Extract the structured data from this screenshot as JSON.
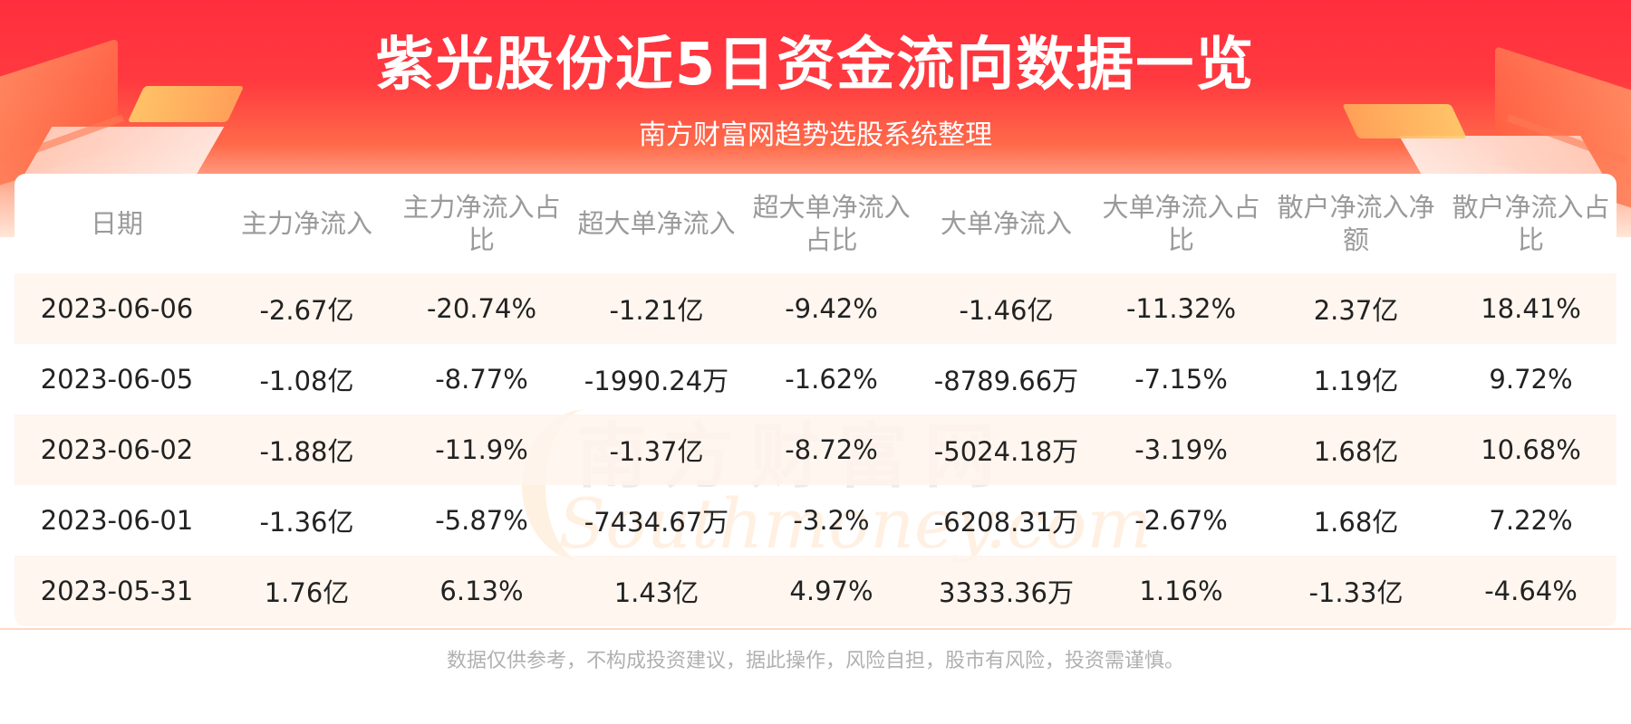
{
  "header": {
    "title": "紫光股份近5日资金流向数据一览",
    "subtitle": "南方财富网趋势选股系统整理"
  },
  "watermark": {
    "cn": "南方财富网",
    "en": "Southmoney.com"
  },
  "table": {
    "columns": [
      "日期",
      "主力净流入",
      "主力净流入占比",
      "超大单净流入",
      "超大单净流入占比",
      "大单净流入",
      "大单净流入占比",
      "散户净流入净额",
      "散户净流入占比"
    ],
    "rows": [
      [
        "2023-06-06",
        "-2.67亿",
        "-20.74%",
        "-1.21亿",
        "-9.42%",
        "-1.46亿",
        "-11.32%",
        "2.37亿",
        "18.41%"
      ],
      [
        "2023-06-05",
        "-1.08亿",
        "-8.77%",
        "-1990.24万",
        "-1.62%",
        "-8789.66万",
        "-7.15%",
        "1.19亿",
        "9.72%"
      ],
      [
        "2023-06-02",
        "-1.88亿",
        "-11.9%",
        "-1.37亿",
        "-8.72%",
        "-5024.18万",
        "-3.19%",
        "1.68亿",
        "10.68%"
      ],
      [
        "2023-06-01",
        "-1.36亿",
        "-5.87%",
        "-7434.67万",
        "-3.2%",
        "-6208.31万",
        "-2.67%",
        "1.68亿",
        "7.22%"
      ],
      [
        "2023-05-31",
        "1.76亿",
        "6.13%",
        "1.43亿",
        "4.97%",
        "3333.36万",
        "1.16%",
        "-1.33亿",
        "-4.64%"
      ]
    ]
  },
  "footer": {
    "disclaimer": "数据仅供参考，不构成投资建议，据此操作，风险自担，股市有风险，投资需谨慎。"
  },
  "colors": {
    "banner_top": "#ff2e3e",
    "row_alt": "#fff4ec",
    "header_text": "#9a9a9a",
    "cell_text": "#222222"
  }
}
